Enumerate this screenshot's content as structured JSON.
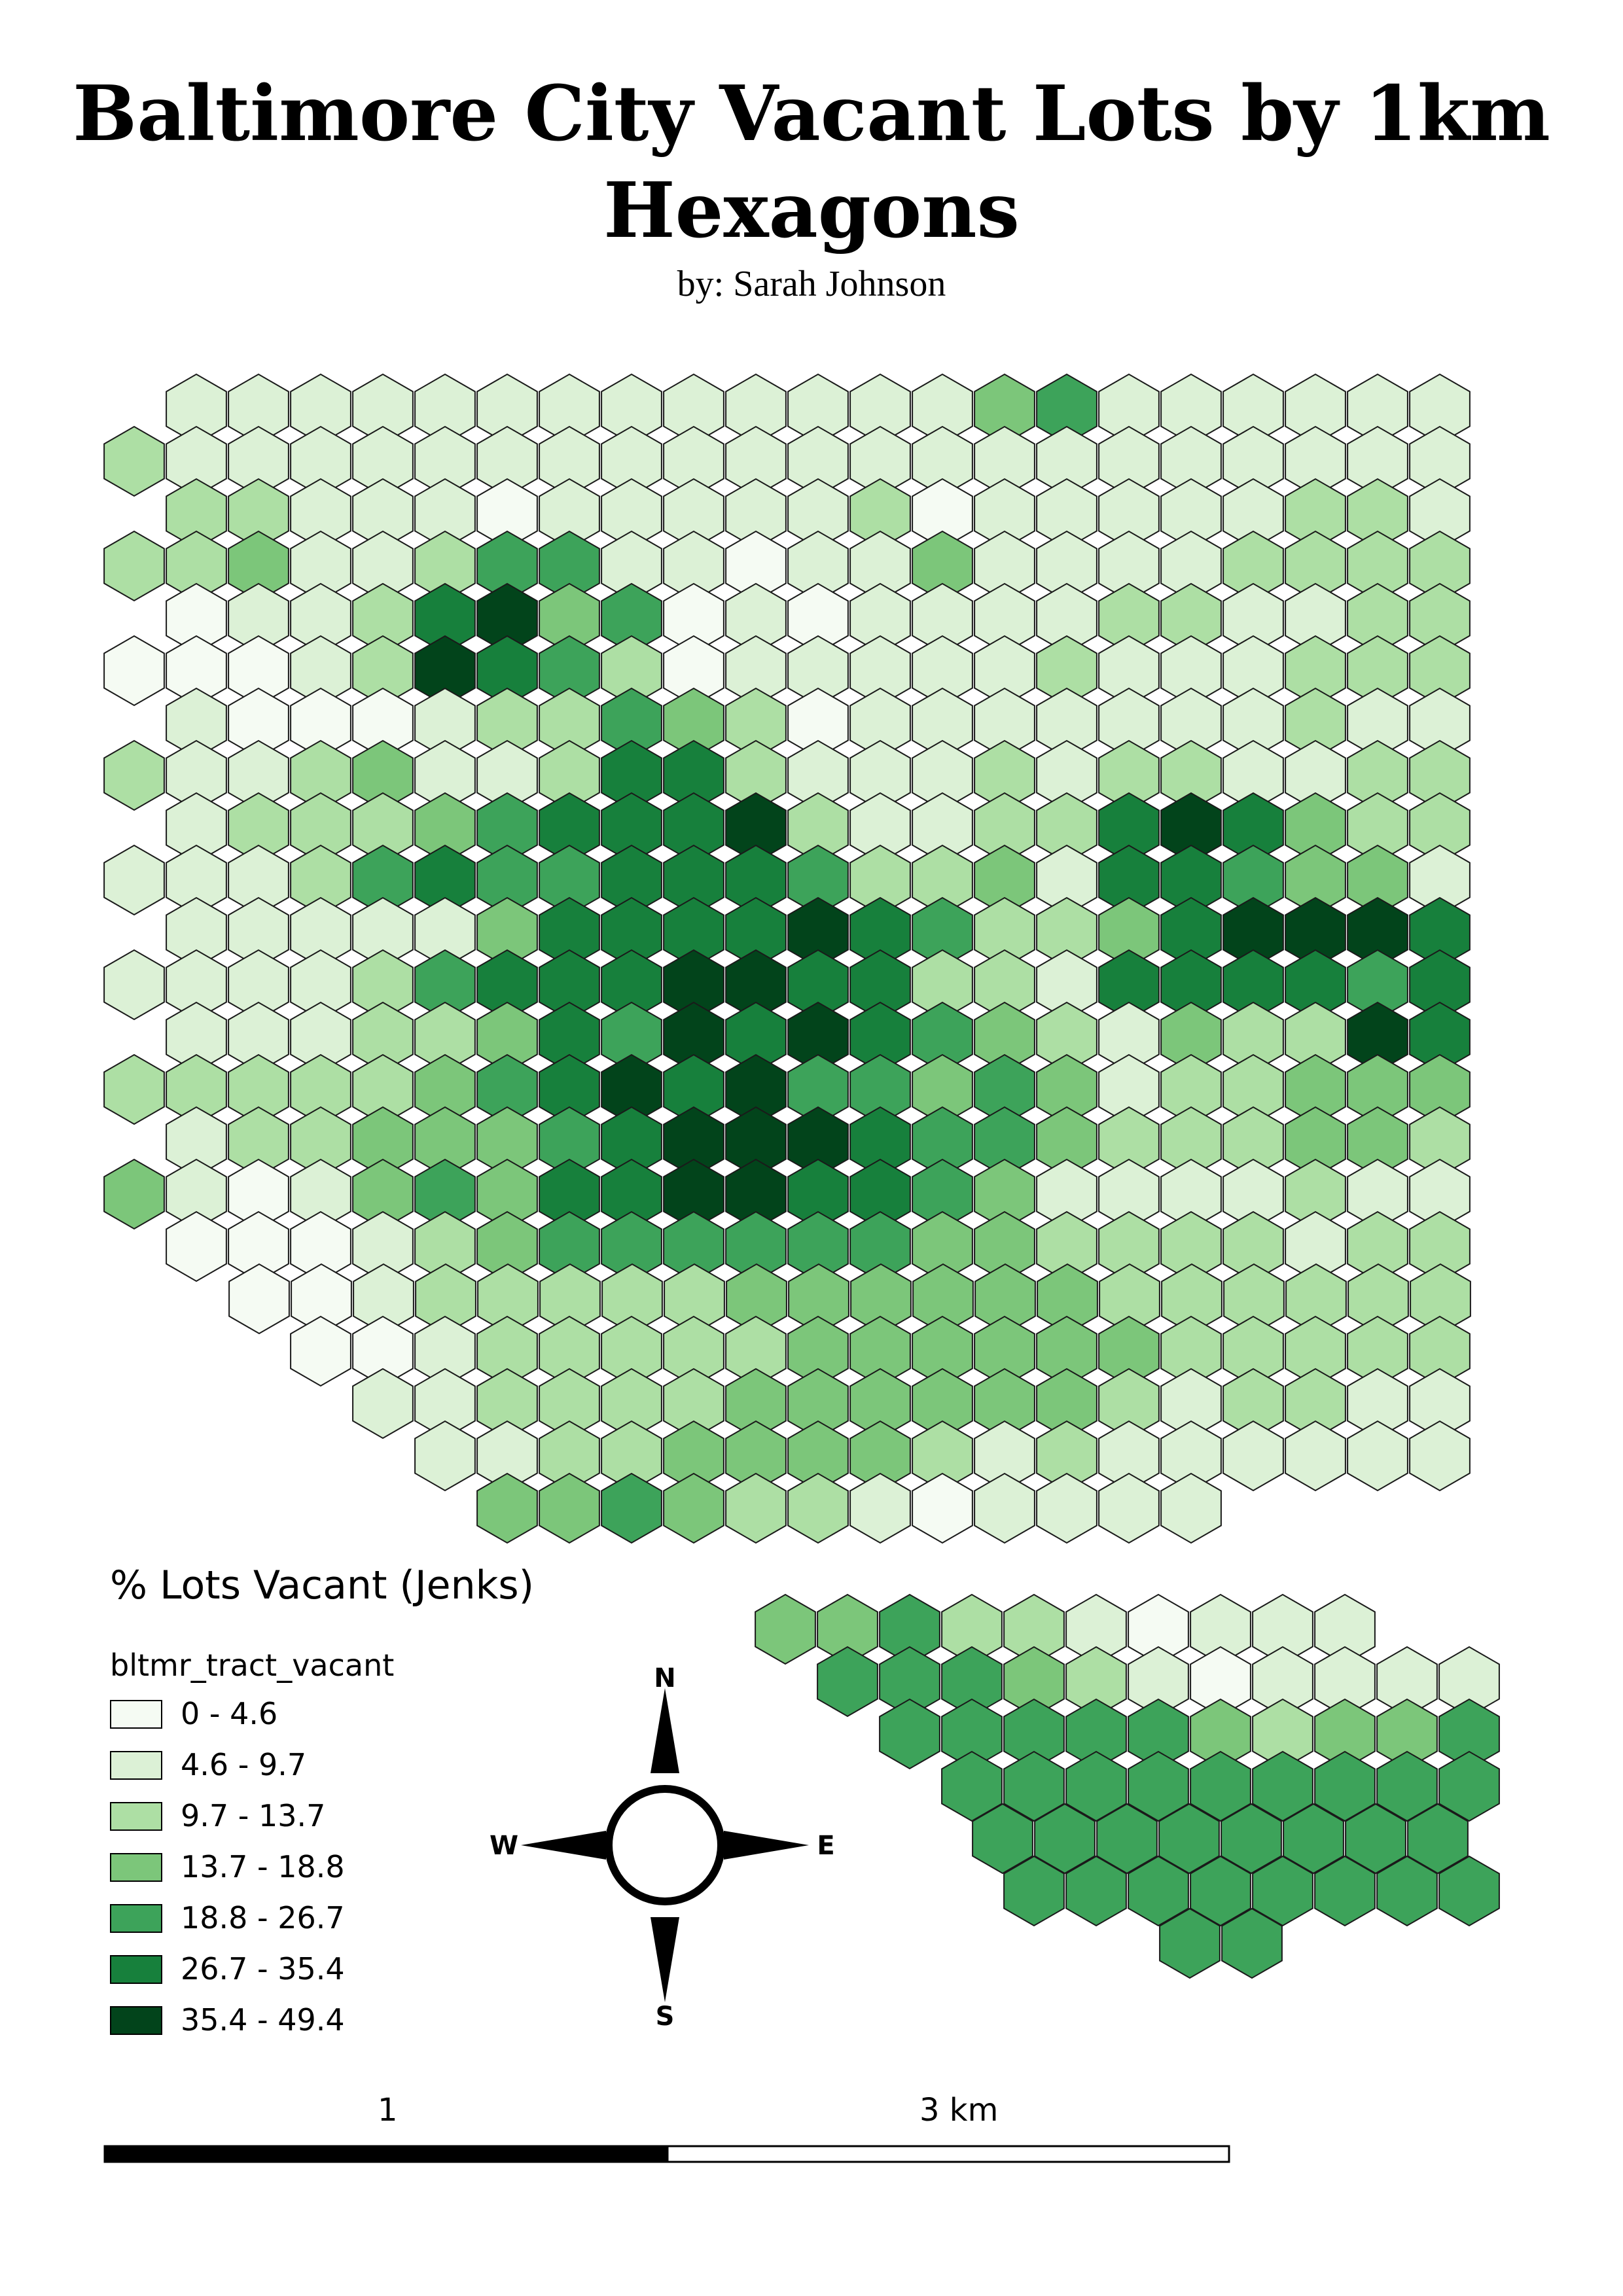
{
  "title": "Baltimore City Vacant Lots by 1km Hexagons",
  "author": "by: Sarah Johnson",
  "legend": {
    "title": "% Lots Vacant (Jenks)",
    "layer": "bltmr_tract_vacant",
    "classes": [
      {
        "label": "0 - 4.6",
        "color": "#f5fbf3"
      },
      {
        "label": "4.6 - 9.7",
        "color": "#dcf1d6"
      },
      {
        "label": "9.7 - 13.7",
        "color": "#addfa4"
      },
      {
        "label": "13.7 - 18.8",
        "color": "#7cc67a"
      },
      {
        "label": "18.8 - 26.7",
        "color": "#3da35a"
      },
      {
        "label": "26.7 - 35.4",
        "color": "#17803c"
      },
      {
        "label": "35.4 - 49.4",
        "color": "#02441b"
      }
    ]
  },
  "compass": {
    "n": "N",
    "s": "S",
    "e": "E",
    "w": "W"
  },
  "scale_bar": {
    "labels": [
      "1",
      "3 km"
    ]
  },
  "hex_map": {
    "description_rows": [
      "1111111111111341111111111",
      "2111111111111111111111111",
      "22111011111201111122111",
      "223112441101131111222211",
      "0112563401011112211222211",
      "0001265420111112111222221",
      "1000122432011111112112111",
      "2112311255211121221122111",
      "1222345556211225653221010",
      "1112454455542231554331111",
      "11111355556542235666542112",
      "1111245556655221555545223641",
      "11122354656543213226566666666",
      "22222345656443431223335656542",
      "122333456665443222332343344432",
      "3101343556655431111211212242",
      "0001234444443322221222221",
      "001222223333332222222111",
      "0012222233333322222212111",
      "11222233333321221111",
      "11223333212111111111",
      "334322101111"
    ]
  }
}
